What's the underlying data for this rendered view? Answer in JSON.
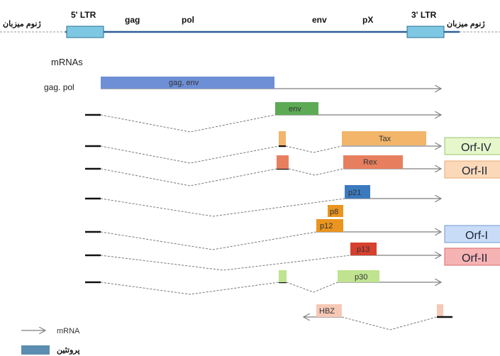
{
  "genome": {
    "host_left": "ژنوم میزبان",
    "host_right": "ژنوم میزبان",
    "ltr5": "5' LTR",
    "ltr3": "3' LTR",
    "genes": [
      "gag",
      "pol",
      "env",
      "pX"
    ]
  },
  "mrnas_label": "mRNAs",
  "rows": [
    {
      "label": "gag. pol",
      "proteins": [
        "gag, env"
      ]
    },
    {
      "label": "",
      "proteins": [
        "env"
      ]
    },
    {
      "label": "",
      "proteins": [
        "Tax"
      ],
      "orf": "Orf-IV"
    },
    {
      "label": "",
      "proteins": [
        "Rex"
      ],
      "orf": "Orf-II"
    },
    {
      "label": "",
      "proteins": [
        "p21"
      ]
    },
    {
      "label": "",
      "proteins": [
        "p8",
        "p12"
      ],
      "orf": "Orf-I"
    },
    {
      "label": "",
      "proteins": [
        "p13"
      ],
      "orf": "Orf-II"
    },
    {
      "label": "",
      "proteins": [
        "p30"
      ]
    },
    {
      "label": "",
      "proteins": [
        "HBZ"
      ]
    }
  ],
  "legend": {
    "mrna": "mRNA",
    "protein": "پروتئین"
  },
  "colors": {
    "genome_line": "#2f5f9a",
    "ltr_box": "#7ec8e3",
    "gag_env": "#6e8fd6",
    "env": "#5daa55",
    "tax": "#f2b56a",
    "rex": "#e77f5f",
    "p21": "#3c7ac0",
    "p8": "#e9951f",
    "p12": "#e9951f",
    "p13": "#d6402e",
    "p30": "#bfe38f",
    "hbz": "#f7c8b6",
    "orf_iv": "#e6f7cc",
    "orf_ii_a": "#fbd9b8",
    "orf_i": "#c9dcf7",
    "orf_ii_b": "#f6b3b3",
    "legend_protein": "#5b8db0"
  }
}
